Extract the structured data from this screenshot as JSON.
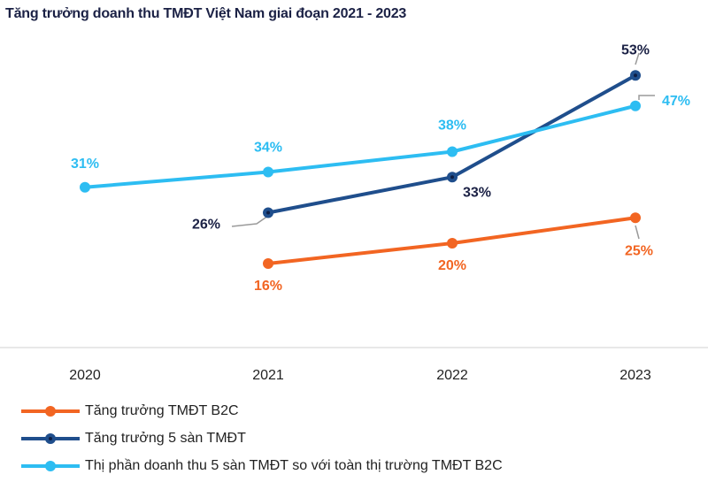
{
  "chart_data": {
    "type": "line",
    "title": "Tăng trưởng doanh thu TMĐT Việt Nam giai đoạn 2021 - 2023",
    "x": [
      "2020",
      "2021",
      "2022",
      "2023"
    ],
    "xlabel": "",
    "ylabel": "",
    "y_axis_visible": false,
    "grid": false,
    "legend_position": "bottom",
    "series": [
      {
        "name": "Tăng trưởng TMĐT B2C",
        "color": "#f26522",
        "values": [
          null,
          16,
          20,
          25
        ],
        "labels": [
          "",
          "16%",
          "20%",
          "25%"
        ]
      },
      {
        "name": "Tăng trưởng 5 sàn TMĐT",
        "color": "#1f4e8c",
        "values": [
          null,
          26,
          33,
          53
        ],
        "labels": [
          "",
          "26%",
          "33%",
          "53%"
        ]
      },
      {
        "name": "Thị phần doanh thu 5 sàn TMĐT so với toàn thị trường TMĐT B2C",
        "color": "#2dbdf2",
        "values": [
          31,
          34,
          38,
          47
        ],
        "labels": [
          "31%",
          "34%",
          "38%",
          "47%"
        ]
      }
    ]
  }
}
